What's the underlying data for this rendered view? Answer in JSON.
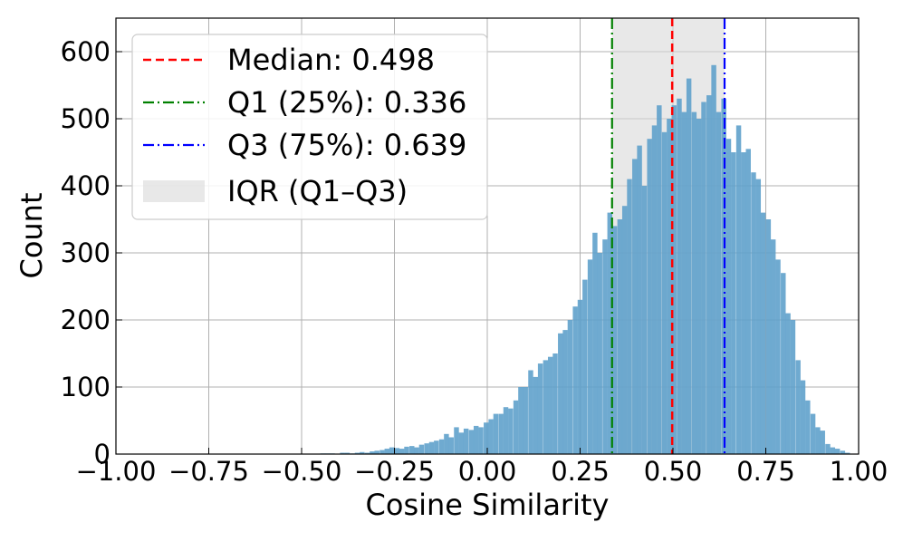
{
  "chart_data": {
    "type": "bar",
    "title": "",
    "xlabel": "Cosine Similarity",
    "ylabel": "Count",
    "xlim": [
      -1.0,
      1.0
    ],
    "ylim": [
      0,
      650
    ],
    "grid": true,
    "legend_position": "top-left",
    "xticks": [
      "−1.00",
      "−0.75",
      "−0.50",
      "−0.25",
      "0.00",
      "0.25",
      "0.50",
      "0.75",
      "1.00"
    ],
    "xtick_values": [
      -1.0,
      -0.75,
      -0.5,
      -0.25,
      0.0,
      0.25,
      0.5,
      0.75,
      1.0
    ],
    "yticks": [
      "0",
      "100",
      "200",
      "300",
      "400",
      "500",
      "600"
    ],
    "ytick_values": [
      0,
      100,
      200,
      300,
      400,
      500,
      600
    ],
    "bin_width": 0.0133,
    "bin_centers": [
      -0.443,
      -0.43,
      -0.417,
      -0.403,
      -0.39,
      -0.377,
      -0.363,
      -0.35,
      -0.337,
      -0.323,
      -0.31,
      -0.297,
      -0.283,
      -0.27,
      -0.257,
      -0.243,
      -0.23,
      -0.217,
      -0.203,
      -0.19,
      -0.177,
      -0.163,
      -0.15,
      -0.137,
      -0.123,
      -0.11,
      -0.097,
      -0.083,
      -0.07,
      -0.057,
      -0.043,
      -0.03,
      -0.017,
      -0.003,
      0.01,
      0.023,
      0.037,
      0.05,
      0.063,
      0.077,
      0.09,
      0.103,
      0.117,
      0.13,
      0.143,
      0.157,
      0.17,
      0.183,
      0.197,
      0.21,
      0.223,
      0.237,
      0.25,
      0.263,
      0.277,
      0.29,
      0.303,
      0.317,
      0.33,
      0.343,
      0.357,
      0.37,
      0.383,
      0.397,
      0.41,
      0.423,
      0.437,
      0.45,
      0.463,
      0.477,
      0.49,
      0.503,
      0.517,
      0.53,
      0.543,
      0.557,
      0.57,
      0.583,
      0.597,
      0.61,
      0.623,
      0.637,
      0.65,
      0.663,
      0.677,
      0.69,
      0.703,
      0.717,
      0.73,
      0.743,
      0.757,
      0.77,
      0.783,
      0.797,
      0.81,
      0.823,
      0.837,
      0.85,
      0.863,
      0.877,
      0.89,
      0.903,
      0.917,
      0.93,
      0.943,
      0.957,
      0.97
    ],
    "values": [
      1,
      1,
      1,
      0,
      2,
      2,
      1,
      2,
      3,
      2,
      4,
      5,
      6,
      8,
      10,
      9,
      8,
      11,
      12,
      10,
      14,
      16,
      18,
      20,
      22,
      30,
      25,
      40,
      32,
      38,
      36,
      42,
      40,
      47,
      52,
      60,
      60,
      70,
      68,
      80,
      100,
      100,
      125,
      115,
      135,
      140,
      145,
      150,
      180,
      185,
      200,
      220,
      230,
      260,
      290,
      330,
      300,
      320,
      360,
      340,
      350,
      370,
      410,
      440,
      460,
      400,
      470,
      490,
      520,
      480,
      500,
      520,
      530,
      510,
      560,
      510,
      500,
      525,
      535,
      580,
      510,
      530,
      470,
      450,
      490,
      450,
      455,
      420,
      410,
      360,
      350,
      320,
      290,
      270,
      210,
      200,
      140,
      110,
      80,
      60,
      40,
      35,
      15,
      10,
      8,
      5,
      2
    ],
    "series": [
      {
        "name": "",
        "color": "#5fa1cb"
      }
    ],
    "annotations": {
      "median": {
        "label": "Median: 0.498",
        "value": 0.498,
        "color": "#ff0000",
        "style": "dashed"
      },
      "q1": {
        "label": "Q1 (25%): 0.336",
        "value": 0.336,
        "color": "#008000",
        "style": "dashdot"
      },
      "q3": {
        "label": "Q3 (75%): 0.639",
        "value": 0.639,
        "color": "#0000ff",
        "style": "dashdot"
      },
      "iqr": {
        "label": "IQR (Q1–Q3)",
        "from": 0.336,
        "to": 0.639,
        "color": "#d9d9d9"
      }
    }
  }
}
